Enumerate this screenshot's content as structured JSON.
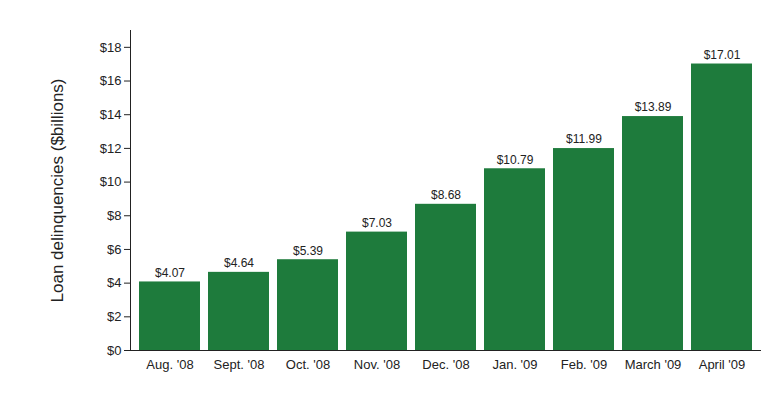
{
  "chart_data": {
    "type": "bar",
    "y_label": "Loan delinquencies ($billions)",
    "categories": [
      "Aug. '08",
      "Sept. '08",
      "Oct. '08",
      "Nov. '08",
      "Dec. '08",
      "Jan. '09",
      "Feb. '09",
      "March '09",
      "April '09"
    ],
    "values": [
      4.07,
      4.64,
      5.39,
      7.03,
      8.68,
      10.79,
      11.99,
      13.89,
      17.01
    ],
    "value_labels": [
      "$4.07",
      "$4.64",
      "$5.39",
      "$7.03",
      "$8.68",
      "$10.79",
      "$11.99",
      "$13.89",
      "$17.01"
    ],
    "color": "#1e7b3c",
    "ylim": [
      0,
      19
    ],
    "yticks": [
      {
        "value": 0,
        "label": "$0"
      },
      {
        "value": 2,
        "label": "$2"
      },
      {
        "value": 4,
        "label": "$4"
      },
      {
        "value": 6,
        "label": "$6"
      },
      {
        "value": 8,
        "label": "$8"
      },
      {
        "value": 10,
        "label": "$10"
      },
      {
        "value": 12,
        "label": "$12"
      },
      {
        "value": 14,
        "label": "$14"
      },
      {
        "value": 16,
        "label": "$16"
      },
      {
        "value": 18,
        "label": "$18"
      }
    ],
    "grid": false,
    "data_labels": true
  }
}
